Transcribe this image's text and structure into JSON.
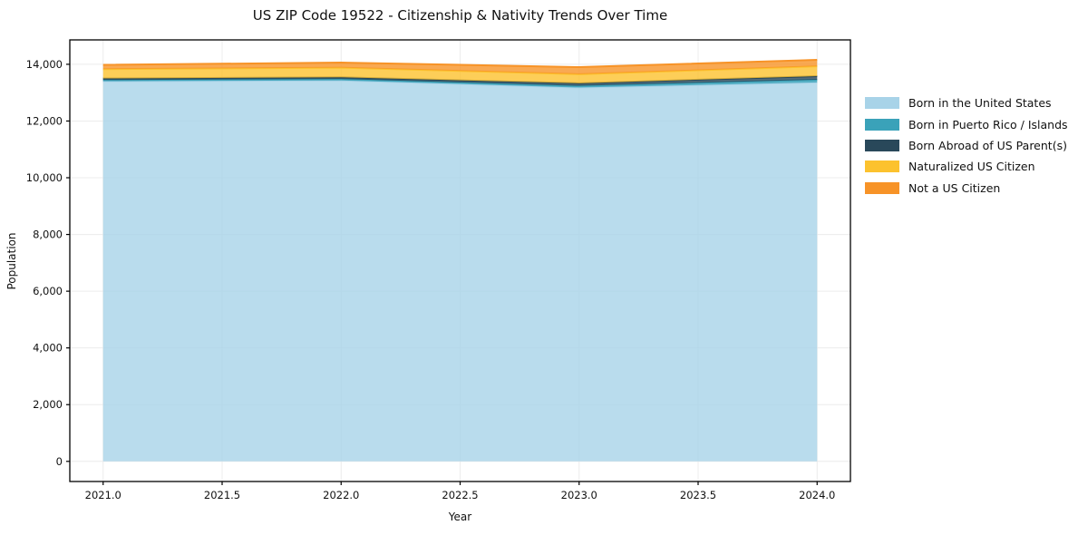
{
  "chart_data": {
    "type": "area",
    "stacked": true,
    "title": "US ZIP Code 19522 - Citizenship & Nativity Trends Over Time",
    "xlabel": "Year",
    "ylabel": "Population",
    "x": [
      2021,
      2022,
      2023,
      2024
    ],
    "series": [
      {
        "name": "Born in the United States",
        "color": "#a8d3e8",
        "values": [
          13400,
          13430,
          13180,
          13360
        ]
      },
      {
        "name": "Born in Puerto Rico / Islands",
        "color": "#3aa2b9",
        "values": [
          45,
          50,
          60,
          95
        ]
      },
      {
        "name": "Born Abroad of US Parent(s)",
        "color": "#29485a",
        "values": [
          55,
          60,
          90,
          125
        ]
      },
      {
        "name": "Naturalized US Citizen",
        "color": "#fcc22e",
        "values": [
          330,
          340,
          320,
          350
        ]
      },
      {
        "name": "Not a US Citizen",
        "color": "#f79327",
        "values": [
          150,
          180,
          250,
          225
        ]
      }
    ],
    "totals": [
      13980,
      14060,
      13900,
      14155
    ],
    "xticks": {
      "values": [
        2021.0,
        2021.5,
        2022.0,
        2022.5,
        2023.0,
        2023.5,
        2024.0
      ],
      "labels": [
        "2021.0",
        "2021.5",
        "2022.0",
        "2022.5",
        "2023.0",
        "2023.5",
        "2024.0"
      ]
    },
    "yticks": {
      "values": [
        0,
        2000,
        4000,
        6000,
        8000,
        10000,
        12000,
        14000
      ],
      "labels": [
        "0",
        "2,000",
        "4,000",
        "6,000",
        "8,000",
        "10,000",
        "12,000",
        "14,000"
      ]
    },
    "xlim": [
      2020.86,
      2024.14
    ],
    "ylim": [
      -710,
      14860
    ],
    "grid": true,
    "fill_opacity": 0.8,
    "legend_position": "outside-right"
  }
}
